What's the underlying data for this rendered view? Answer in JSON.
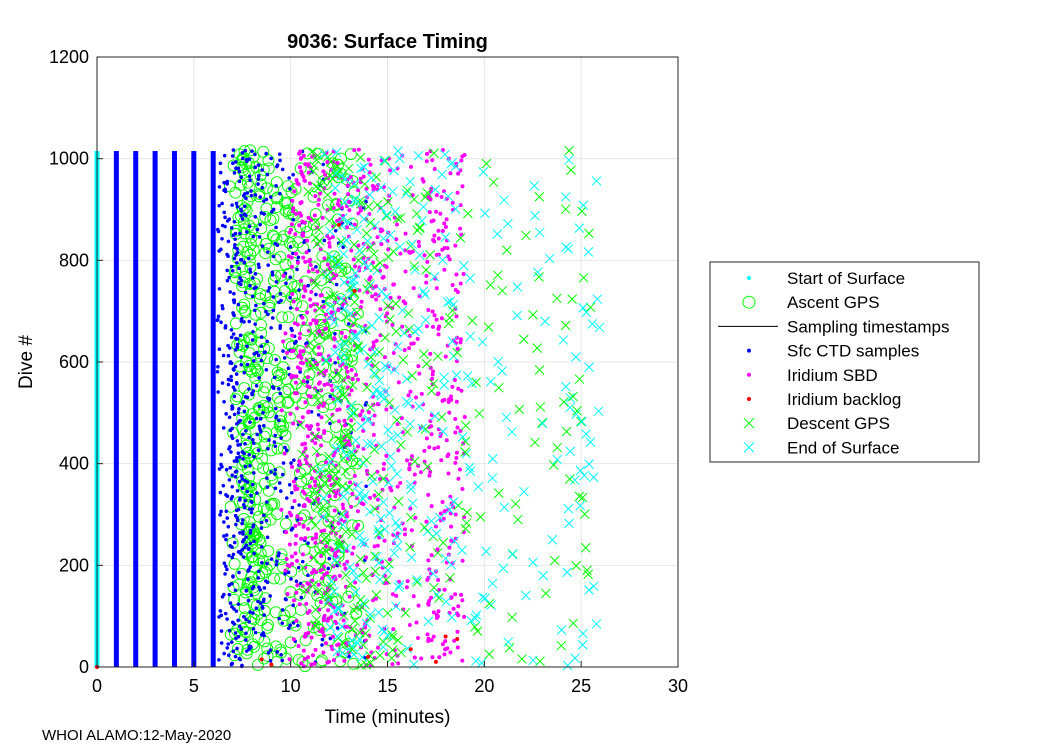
{
  "chart_data": {
    "type": "scatter",
    "title": "9036: Surface Timing",
    "xlabel": "Time (minutes)",
    "ylabel": "Dive #",
    "xlim": [
      0,
      30
    ],
    "ylim": [
      0,
      1200
    ],
    "xticks": [
      0,
      5,
      10,
      15,
      20,
      25,
      30
    ],
    "yticks": [
      0,
      200,
      400,
      600,
      800,
      1000,
      1200
    ],
    "grid": true,
    "legend_position": "outside-right",
    "dive_range": [
      1,
      1015
    ],
    "series": [
      {
        "name": "Start of Surface",
        "marker": "dot",
        "color": "#00ffff",
        "x_constant": 0,
        "dives": [
          1,
          1015
        ]
      },
      {
        "name": "Ascent GPS",
        "marker": "circle",
        "color": "#00ff00",
        "x_range": [
          6.2,
          13.5
        ],
        "x_peak": 7.3,
        "dives": [
          1,
          1015
        ]
      },
      {
        "name": "Sampling timestamps",
        "marker": "line",
        "color": "#000000"
      },
      {
        "name": "Sfc CTD samples",
        "marker": "dot",
        "color": "#0000ff",
        "x_columns": [
          1,
          2,
          3,
          4,
          5,
          6
        ],
        "x_scatter_range": [
          6.2,
          14.0
        ],
        "dives": [
          1,
          1015
        ]
      },
      {
        "name": "Iridium SBD",
        "marker": "dot",
        "color": "#ff00ff",
        "x_range": [
          6.5,
          19.0
        ],
        "x_peak": 10.0,
        "dives": [
          1,
          1015
        ]
      },
      {
        "name": "Iridium backlog",
        "marker": "dot",
        "color": "#ff0000",
        "x": [
          0,
          8.5,
          9.0,
          12.5,
          13.3,
          14.0,
          16.2,
          17.5,
          18.0,
          18.6
        ],
        "y": [
          0,
          15,
          5,
          870,
          740,
          20,
          35,
          10,
          60,
          55
        ]
      },
      {
        "name": "Descent GPS",
        "marker": "x",
        "color": "#00ff00",
        "x_range": [
          7.5,
          25.5
        ],
        "x_peak": 11.0,
        "dives": [
          1,
          1015
        ]
      },
      {
        "name": "End of Surface",
        "marker": "x",
        "color": "#00ffff",
        "x_range": [
          7.5,
          26.0
        ],
        "x_peak": 12.0,
        "dives": [
          1,
          1015
        ]
      }
    ]
  },
  "footer": "WHOI ALAMO:12-May-2020"
}
